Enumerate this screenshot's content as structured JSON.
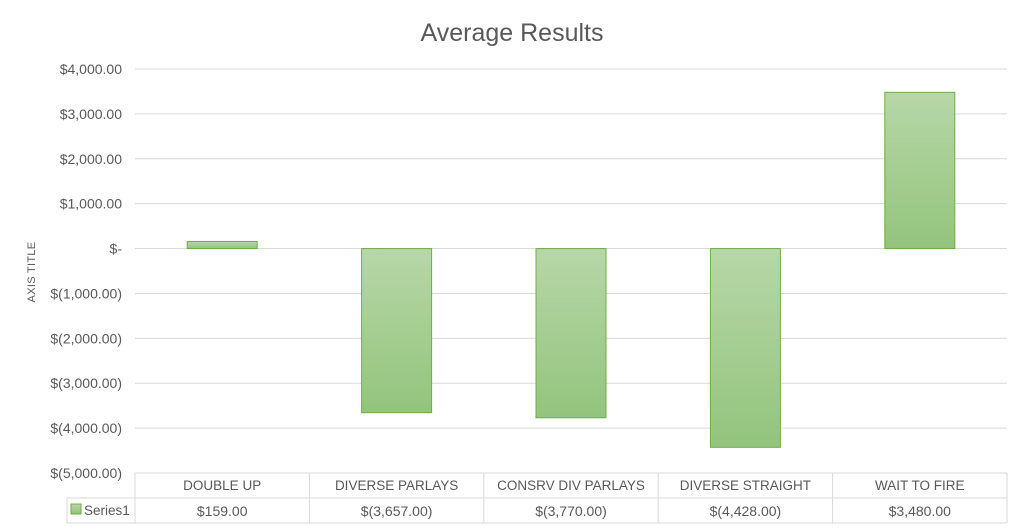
{
  "chart_data": {
    "type": "bar",
    "title": "Average Results",
    "ylabel": "AXIS TITLE",
    "xlabel": "",
    "categories": [
      "DOUBLE UP",
      "DIVERSE PARLAYS",
      "CONSRV DIV PARLAYS",
      "DIVERSE STRAIGHT",
      "WAIT TO FIRE"
    ],
    "series": [
      {
        "name": "Series1",
        "values": [
          159,
          -3657,
          -3770,
          -4428,
          3480
        ],
        "value_labels": [
          "$159.00",
          "$(3,657.00)",
          "$(3,770.00)",
          "$(4,428.00)",
          "$3,480.00"
        ]
      }
    ],
    "ylim": [
      -5000,
      4000
    ],
    "yticks": [
      4000,
      3000,
      2000,
      1000,
      0,
      -1000,
      -2000,
      -3000,
      -4000,
      -5000
    ],
    "ytick_labels": [
      "$4,000.00",
      "$3,000.00",
      "$2,000.00",
      "$1,000.00",
      "$-",
      "$(1,000.00)",
      "$(2,000.00)",
      "$(3,000.00)",
      "$(4,000.00)",
      "$(5,000.00)"
    ],
    "grid": true,
    "data_table": true,
    "legend": "in data table",
    "colors": {
      "bar_top": "#b7d7a8",
      "bar_bottom": "#93c47d",
      "bar_stroke": "#70ad47",
      "grid": "#d9d9d9",
      "text": "#595959"
    }
  }
}
